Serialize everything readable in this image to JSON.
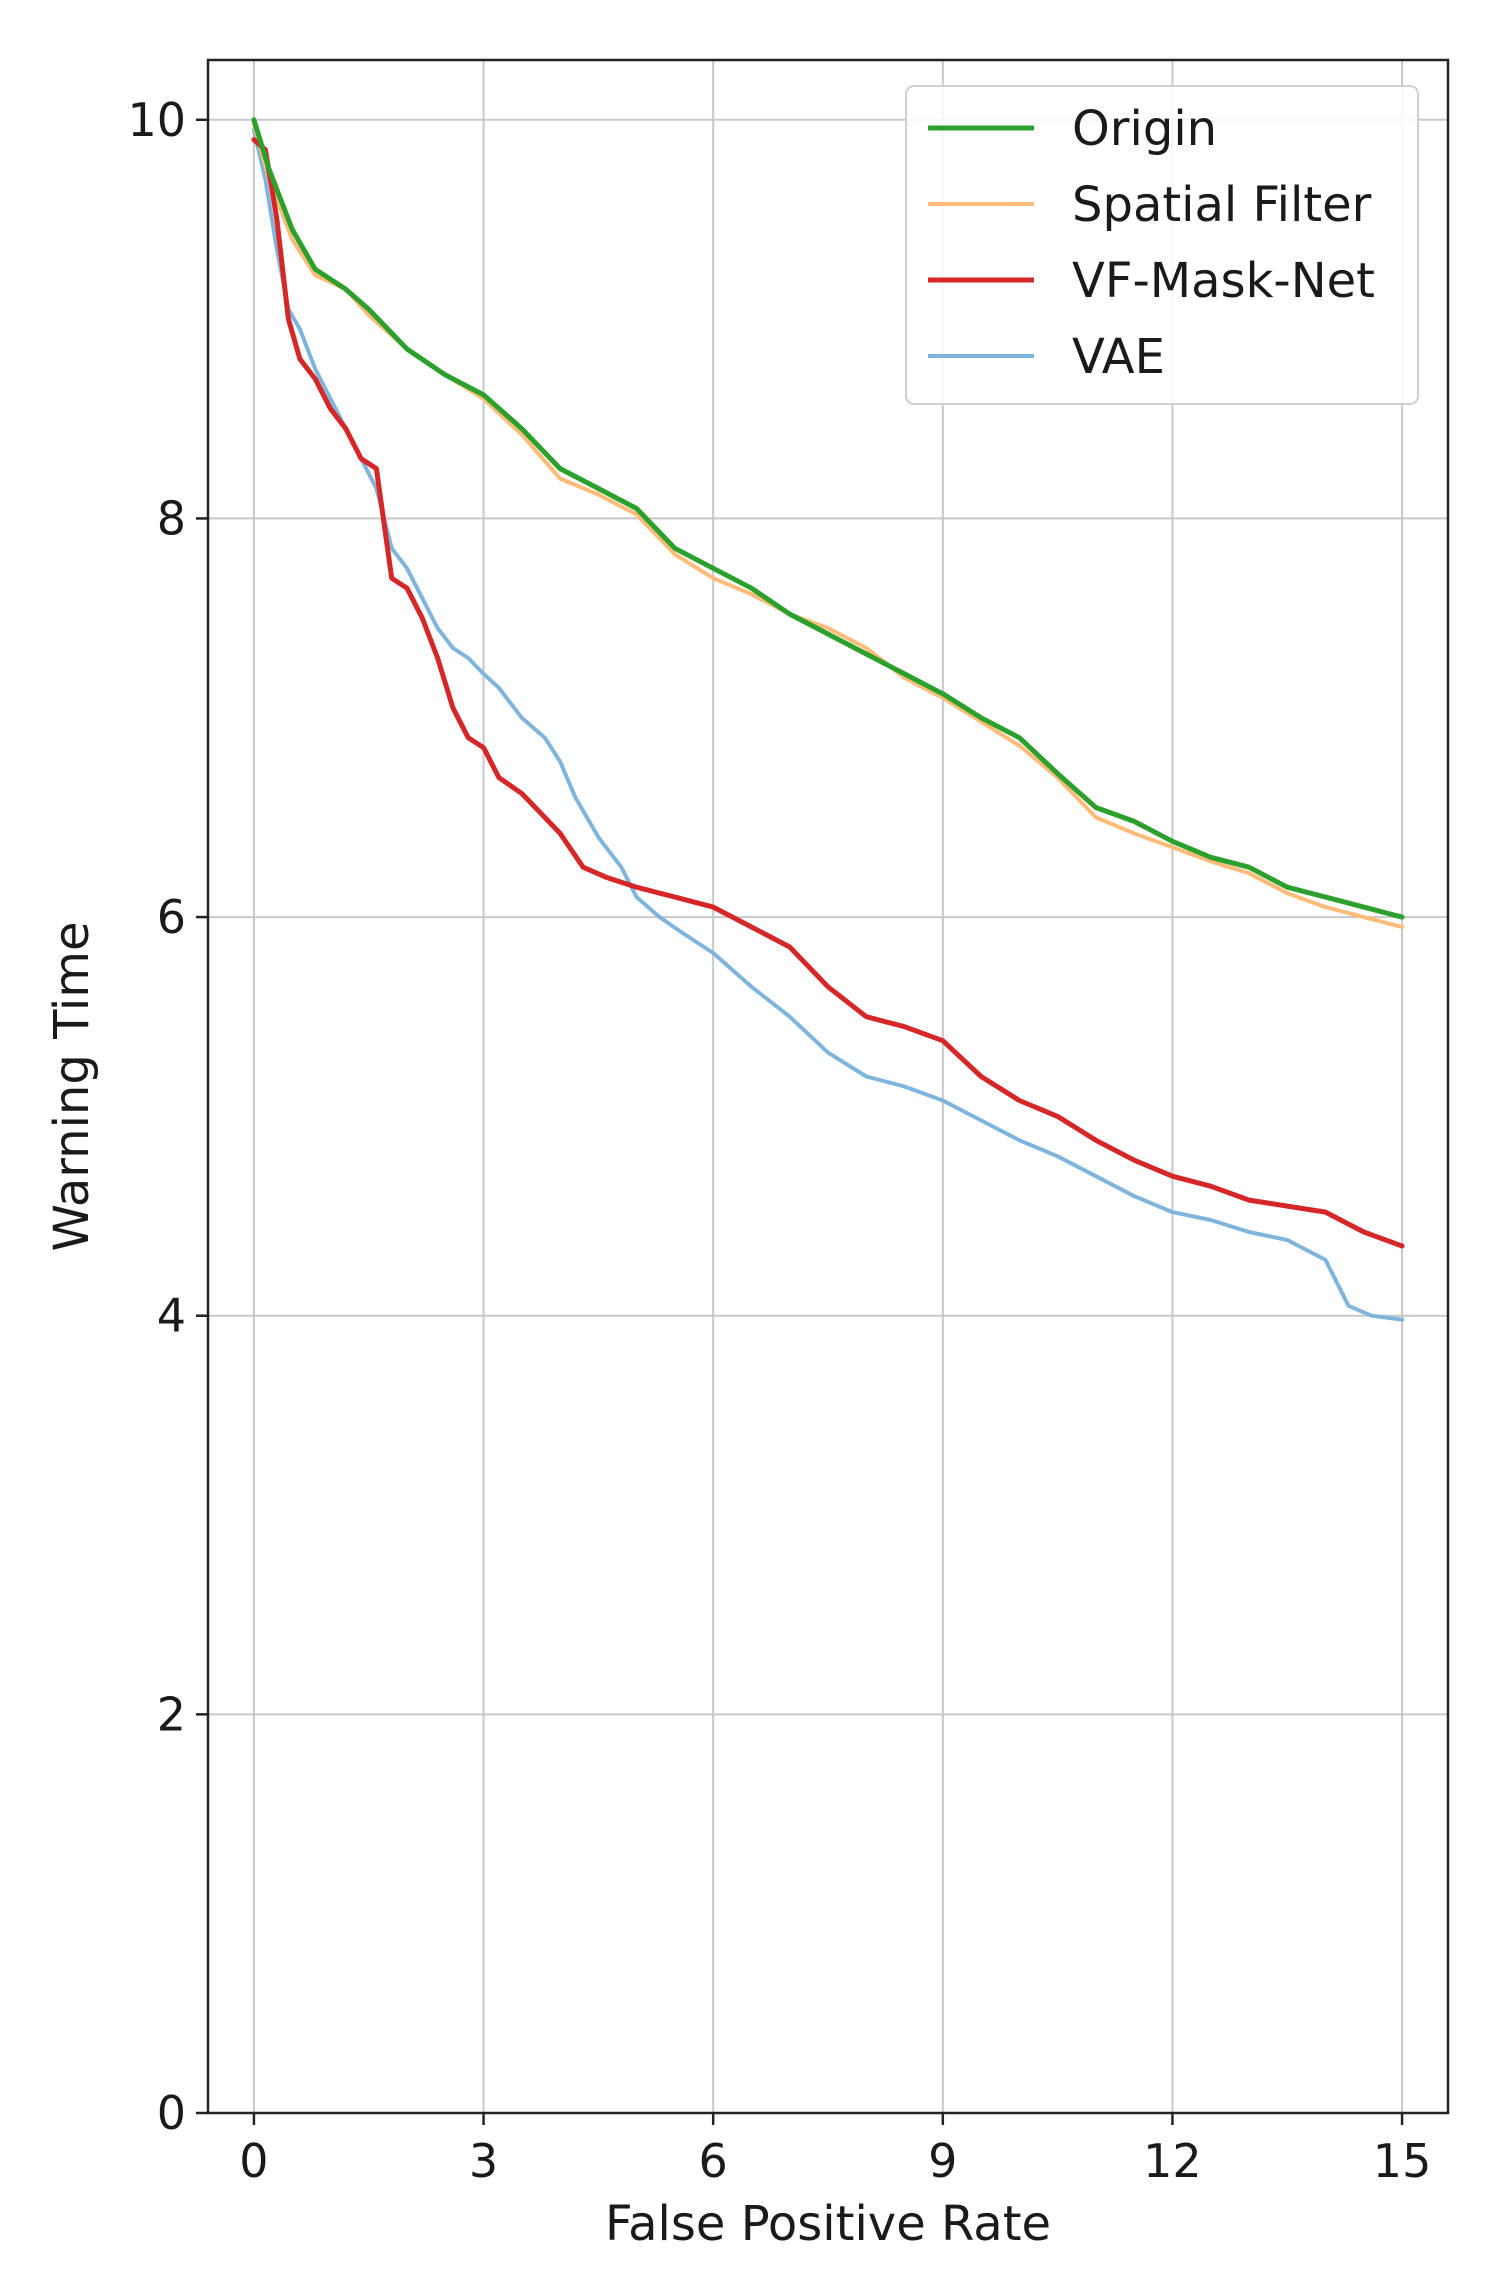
{
  "chart_data": {
    "type": "line",
    "title": "",
    "xlabel": "False Positive Rate",
    "ylabel": "Warning Time",
    "xlim": [
      -0.6,
      15.6
    ],
    "ylim": [
      0,
      10.3
    ],
    "xticks": [
      0,
      3,
      6,
      9,
      12,
      15
    ],
    "yticks": [
      0,
      2,
      4,
      6,
      8,
      10
    ],
    "grid": true,
    "legend": {
      "placement": "top-right"
    },
    "series": [
      {
        "name": "Origin",
        "color": "#2ca02c",
        "x": [
          0,
          0.2,
          0.5,
          0.8,
          1.2,
          1.5,
          2.0,
          2.5,
          3.0,
          3.5,
          4.0,
          4.5,
          5.0,
          5.5,
          6.0,
          6.5,
          7.0,
          7.5,
          8.0,
          8.5,
          9.0,
          9.5,
          10.0,
          10.5,
          11.0,
          11.5,
          12.0,
          12.5,
          13.0,
          13.5,
          14.0,
          14.5,
          15.0
        ],
        "y": [
          10.0,
          9.75,
          9.45,
          9.25,
          9.15,
          9.05,
          8.85,
          8.72,
          8.62,
          8.45,
          8.25,
          8.15,
          8.05,
          7.85,
          7.75,
          7.65,
          7.52,
          7.42,
          7.32,
          7.22,
          7.12,
          7.0,
          6.9,
          6.72,
          6.55,
          6.48,
          6.38,
          6.3,
          6.25,
          6.15,
          6.1,
          6.05,
          6.0
        ]
      },
      {
        "name": "Spatial Filter",
        "color": "#ffbb78",
        "x": [
          0,
          0.2,
          0.5,
          0.8,
          1.2,
          1.5,
          2.0,
          2.5,
          3.0,
          3.5,
          4.0,
          4.5,
          5.0,
          5.5,
          6.0,
          6.5,
          7.0,
          7.5,
          8.0,
          8.5,
          9.0,
          9.5,
          10.0,
          10.5,
          11.0,
          11.5,
          12.0,
          12.5,
          13.0,
          13.5,
          14.0,
          14.5,
          15.0
        ],
        "y": [
          9.98,
          9.7,
          9.4,
          9.22,
          9.15,
          9.02,
          8.85,
          8.72,
          8.6,
          8.42,
          8.2,
          8.12,
          8.02,
          7.82,
          7.7,
          7.62,
          7.52,
          7.45,
          7.35,
          7.2,
          7.1,
          6.98,
          6.86,
          6.7,
          6.5,
          6.42,
          6.35,
          6.28,
          6.22,
          6.12,
          6.05,
          6.0,
          5.95
        ]
      },
      {
        "name": "VF-Mask-Net",
        "color": "#d62728",
        "x": [
          0,
          0.15,
          0.3,
          0.45,
          0.6,
          0.8,
          1.0,
          1.2,
          1.4,
          1.6,
          1.8,
          2.0,
          2.2,
          2.4,
          2.6,
          2.8,
          3.0,
          3.2,
          3.5,
          3.8,
          4.0,
          4.3,
          4.6,
          5.0,
          5.5,
          6.0,
          6.5,
          7.0,
          7.5,
          8.0,
          8.5,
          9.0,
          9.5,
          10.0,
          10.5,
          11.0,
          11.5,
          12.0,
          12.5,
          13.0,
          13.5,
          14.0,
          14.5,
          15.0
        ],
        "y": [
          9.9,
          9.85,
          9.5,
          9.0,
          8.8,
          8.7,
          8.55,
          8.45,
          8.3,
          8.25,
          7.7,
          7.65,
          7.5,
          7.3,
          7.05,
          6.9,
          6.85,
          6.7,
          6.62,
          6.5,
          6.42,
          6.25,
          6.2,
          6.15,
          6.1,
          6.05,
          5.95,
          5.85,
          5.65,
          5.5,
          5.45,
          5.38,
          5.2,
          5.08,
          5.0,
          4.88,
          4.78,
          4.7,
          4.65,
          4.58,
          4.55,
          4.52,
          4.42,
          4.35
        ]
      },
      {
        "name": "VAE",
        "color": "#7fb5dc",
        "x": [
          0,
          0.15,
          0.3,
          0.45,
          0.6,
          0.8,
          1.0,
          1.2,
          1.4,
          1.6,
          1.8,
          2.0,
          2.2,
          2.4,
          2.6,
          2.8,
          3.0,
          3.2,
          3.5,
          3.8,
          4.0,
          4.2,
          4.5,
          4.8,
          5.0,
          5.3,
          5.6,
          6.0,
          6.5,
          7.0,
          7.5,
          8.0,
          8.5,
          9.0,
          9.5,
          10.0,
          10.5,
          11.0,
          11.5,
          12.0,
          12.5,
          13.0,
          13.5,
          14.0,
          14.3,
          14.6,
          15.0
        ],
        "y": [
          9.95,
          9.7,
          9.35,
          9.05,
          8.95,
          8.75,
          8.6,
          8.45,
          8.3,
          8.15,
          7.85,
          7.75,
          7.6,
          7.45,
          7.35,
          7.3,
          7.22,
          7.15,
          7.0,
          6.9,
          6.78,
          6.6,
          6.4,
          6.25,
          6.1,
          6.0,
          5.92,
          5.82,
          5.65,
          5.5,
          5.32,
          5.2,
          5.15,
          5.08,
          4.98,
          4.88,
          4.8,
          4.7,
          4.6,
          4.52,
          4.48,
          4.42,
          4.38,
          4.28,
          4.05,
          4.0,
          3.98
        ]
      }
    ]
  }
}
